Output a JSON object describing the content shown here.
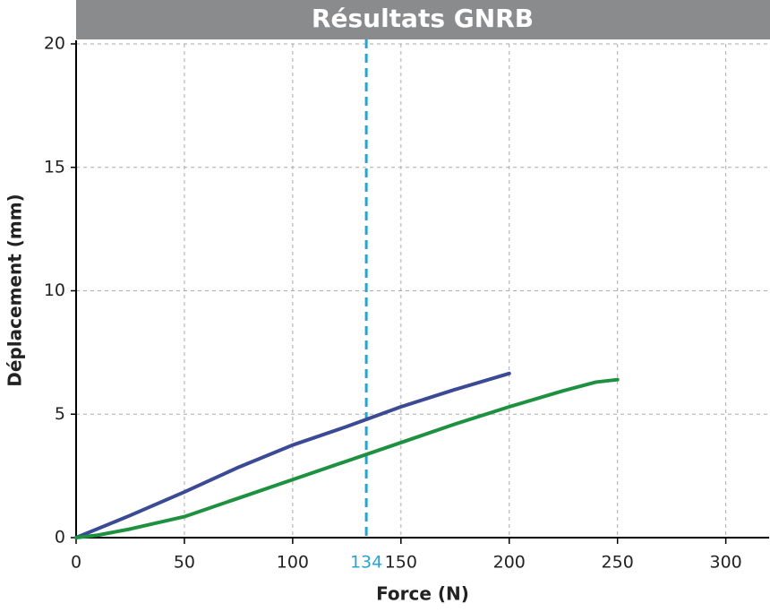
{
  "chart_data": {
    "type": "line",
    "title": "Résultats GNRB",
    "xlabel": "Force (N)",
    "ylabel": "Déplacement (mm)",
    "xlim": [
      0,
      320
    ],
    "xticks": [
      0,
      50,
      100,
      150,
      200,
      250,
      300
    ],
    "ylim": [
      0,
      20
    ],
    "yticks": [
      0,
      5,
      10,
      15,
      20
    ],
    "grid": true,
    "series": [
      {
        "color": "#3b4a94",
        "x": [
          0,
          25,
          50,
          75,
          100,
          125,
          150,
          175,
          200
        ],
        "values": [
          0,
          0.9,
          1.85,
          2.85,
          3.75,
          4.5,
          5.3,
          6.0,
          6.65
        ]
      },
      {
        "color": "#1e9140",
        "x": [
          0,
          10,
          25,
          50,
          75,
          100,
          125,
          150,
          175,
          200,
          225,
          240,
          250
        ],
        "values": [
          0,
          0.1,
          0.35,
          0.85,
          1.6,
          2.35,
          3.1,
          3.85,
          4.6,
          5.3,
          5.95,
          6.3,
          6.4
        ]
      }
    ],
    "annotations": [
      {
        "x": 134,
        "color": "#29a3d6"
      }
    ]
  }
}
